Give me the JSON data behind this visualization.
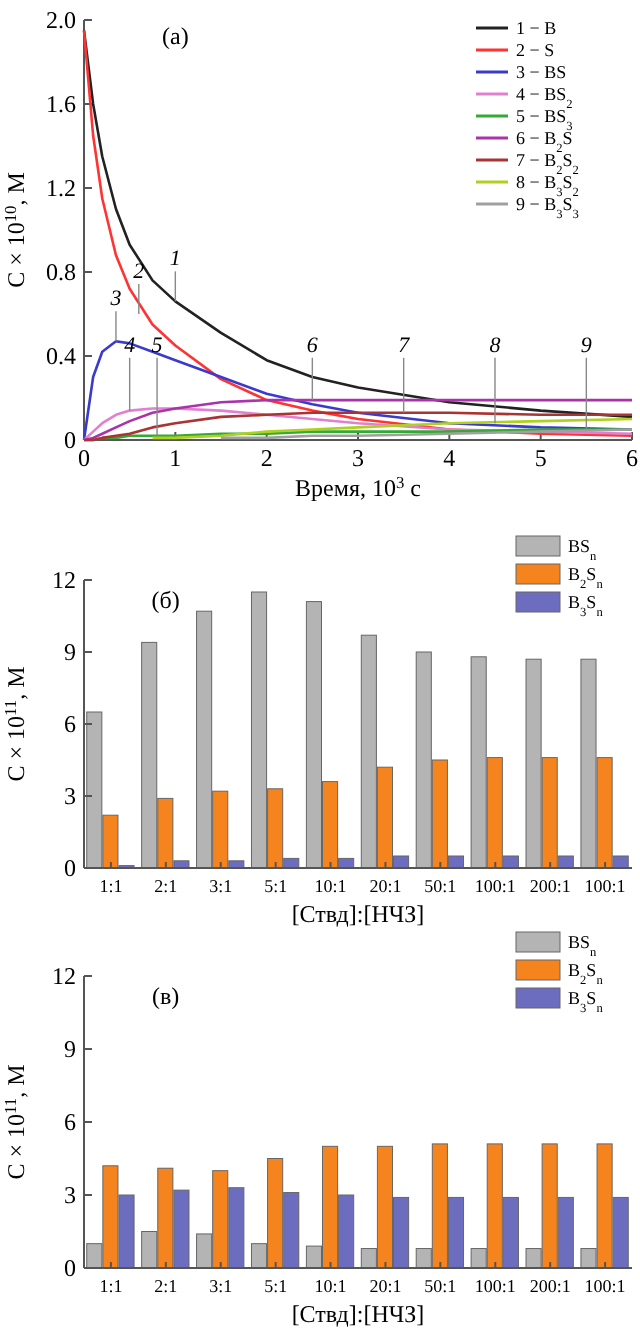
{
  "chart_data": [
    {
      "type": "line",
      "title": "(a)",
      "xlabel": "Время, 10$^{3}$ с",
      "ylabel": "C × 10$^{10}$, М",
      "xlim": [
        0,
        6
      ],
      "xticks": [
        0,
        1,
        2,
        3,
        4,
        5,
        6
      ],
      "ylim": [
        0,
        2
      ],
      "yticks": [
        0,
        0.4,
        0.8,
        1.2,
        1.6,
        {
          "value": 2,
          "label": "2.0"
        }
      ],
      "legend": "top right",
      "grid": false,
      "marker": "none",
      "x": [
        0,
        0.1,
        0.2,
        0.35,
        0.5,
        0.75,
        1,
        1.5,
        2,
        2.5,
        3,
        4,
        5,
        6
      ],
      "series": [
        {
          "name": "1 − B",
          "color": "#222222",
          "values": [
            1.95,
            1.6,
            1.35,
            1.1,
            0.93,
            0.76,
            0.66,
            0.51,
            0.38,
            0.3,
            0.25,
            0.18,
            0.14,
            0.11
          ]
        },
        {
          "name": "2 − S",
          "color": "#ff3333",
          "values": [
            1.95,
            1.45,
            1.15,
            0.88,
            0.72,
            0.55,
            0.45,
            0.29,
            0.19,
            0.14,
            0.1,
            0.05,
            0.03,
            0.02
          ]
        },
        {
          "name": "3 − BS",
          "color": "#3a3acc",
          "values": [
            0,
            0.3,
            0.42,
            0.47,
            0.46,
            0.42,
            0.38,
            0.3,
            0.22,
            0.17,
            0.13,
            0.08,
            0.06,
            0.05
          ]
        },
        {
          "name": "4 − BS$_{2}$",
          "color": "#e080d0",
          "values": [
            0,
            0.04,
            0.08,
            0.12,
            0.14,
            0.15,
            0.15,
            0.14,
            0.12,
            0.1,
            0.08,
            0.05,
            0.04,
            0.03
          ]
        },
        {
          "name": "5 − BS$_{3}$",
          "color": "#33aa33",
          "values": [
            0,
            0,
            0.01,
            0.01,
            0.02,
            0.02,
            0.02,
            0.03,
            0.03,
            0.04,
            0.04,
            0.04,
            0.05,
            0.05
          ]
        },
        {
          "name": "6 − B$_{2}$S",
          "color": "#aa33aa",
          "values": [
            0,
            0.01,
            0.03,
            0.06,
            0.09,
            0.13,
            0.15,
            0.18,
            0.19,
            0.19,
            0.19,
            0.19,
            0.19,
            0.19
          ]
        },
        {
          "name": "7 − B$_{2}$S$_{2}$",
          "color": "#aa3333",
          "values": [
            0,
            0,
            0.01,
            0.02,
            0.03,
            0.06,
            0.08,
            0.11,
            0.12,
            0.13,
            0.13,
            0.13,
            0.12,
            0.12
          ]
        },
        {
          "name": "8 − B$_{3}$S$_{2}$",
          "color": "#b0d020",
          "values": [
            null,
            null,
            null,
            null,
            null,
            0.01,
            0.01,
            0.02,
            0.04,
            0.05,
            0.06,
            0.08,
            0.09,
            0.1
          ]
        },
        {
          "name": "9 − B$_{3}$S$_{3}$",
          "color": "#a0a0a0",
          "values": [
            null,
            null,
            null,
            null,
            null,
            null,
            null,
            0.01,
            0.01,
            0.02,
            0.02,
            0.03,
            0.04,
            0.05
          ]
        }
      ],
      "annotations": [
        {
          "text": "1",
          "x": 1,
          "y": 0.66
        },
        {
          "text": "2",
          "x": 0.6,
          "y": 0.6
        },
        {
          "text": "3",
          "x": 0.35,
          "y": 0.47
        },
        {
          "text": "4",
          "x": 0.5,
          "y": 0.14
        },
        {
          "text": "5",
          "x": 0.8,
          "y": 0.02
        },
        {
          "text": "6",
          "x": 2.5,
          "y": 0.19
        },
        {
          "text": "7",
          "x": 3.5,
          "y": 0.13
        },
        {
          "text": "8",
          "x": 4.5,
          "y": 0.08
        },
        {
          "text": "9",
          "x": 5.5,
          "y": 0.05
        }
      ]
    },
    {
      "type": "bar",
      "title": "(б)",
      "xlabel": "[Ствд]:[НЧЗ]",
      "ylabel": "C × 10$^{11}$, М",
      "ylim": [
        0,
        12
      ],
      "yticks": [
        0,
        3,
        6,
        9,
        12
      ],
      "legend": "top right",
      "grid": false,
      "categories": [
        "1:1",
        "2:1",
        "3:1",
        "5:1",
        "10:1",
        "20:1",
        "50:1",
        "100:1",
        "200:1",
        "100:1"
      ],
      "series": [
        {
          "name": "BS$_{n}$",
          "color": "#b4b4b4",
          "values": [
            6.5,
            9.4,
            10.7,
            11.5,
            11.1,
            9.7,
            9.0,
            8.8,
            8.7,
            8.7
          ]
        },
        {
          "name": "B$_{2}$S$_{n}$",
          "color": "#f5841f",
          "values": [
            2.2,
            2.9,
            3.2,
            3.3,
            3.6,
            4.2,
            4.5,
            4.6,
            4.6,
            4.6
          ]
        },
        {
          "name": "B$_{3}$S$_{n}$",
          "color": "#6d6dc0",
          "values": [
            0.1,
            0.3,
            0.3,
            0.4,
            0.4,
            0.5,
            0.5,
            0.5,
            0.5,
            0.5
          ]
        }
      ]
    },
    {
      "type": "bar",
      "title": "(в)",
      "xlabel": "[Ствд]:[НЧЗ]",
      "ylabel": "C × 10$^{11}$, М",
      "ylim": [
        0,
        12
      ],
      "yticks": [
        0,
        3,
        6,
        9,
        12
      ],
      "legend": "top right",
      "grid": false,
      "categories": [
        "1:1",
        "2:1",
        "3:1",
        "5:1",
        "10:1",
        "20:1",
        "50:1",
        "100:1",
        "200:1",
        "100:1"
      ],
      "series": [
        {
          "name": "BS$_{n}$",
          "color": "#b4b4b4",
          "values": [
            1.0,
            1.5,
            1.4,
            1.0,
            0.9,
            0.8,
            0.8,
            0.8,
            0.8,
            0.8
          ]
        },
        {
          "name": "B$_{2}$S$_{n}$",
          "color": "#f5841f",
          "values": [
            4.2,
            4.1,
            4.0,
            4.5,
            5.0,
            5.0,
            5.1,
            5.1,
            5.1,
            5.1
          ]
        },
        {
          "name": "B$_{3}$S$_{n}$",
          "color": "#6d6dc0",
          "values": [
            3.0,
            3.2,
            3.3,
            3.1,
            3.0,
            2.9,
            2.9,
            2.9,
            2.9,
            2.9
          ]
        }
      ]
    }
  ]
}
